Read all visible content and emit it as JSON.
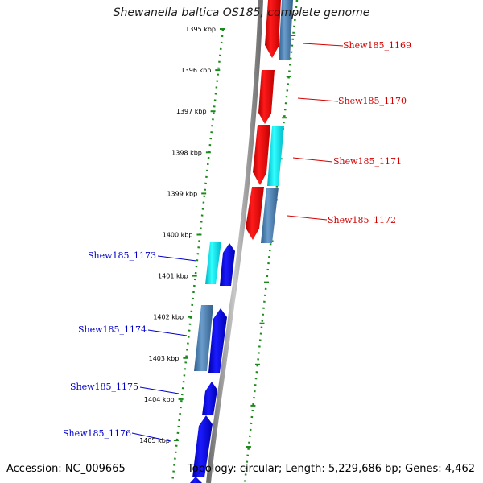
{
  "title": "Shewanella baltica OS185, complete genome",
  "accession": "Accession: NC_009665",
  "summary": "Topology: circular; Length: 5,229,686 bp; Genes: 4,462",
  "colors": {
    "forward_label": "#d40000",
    "reverse_label": "#0000c8",
    "red_gene": "#ff0000",
    "steel_gene": "#4a82b8",
    "cyan_gene": "#00e6f0",
    "blue_gene": "#0000ee",
    "tick": "#1a8a1a",
    "backbone": "#8c8c8c"
  },
  "scale_ticks": [
    {
      "label": "1395 kbp"
    },
    {
      "label": "1396 kbp"
    },
    {
      "label": "1397 kbp"
    },
    {
      "label": "1398 kbp"
    },
    {
      "label": "1399 kbp"
    },
    {
      "label": "1400 kbp"
    },
    {
      "label": "1401 kbp"
    },
    {
      "label": "1402 kbp"
    },
    {
      "label": "1403 kbp"
    },
    {
      "label": "1404 kbp"
    },
    {
      "label": "1405 kbp"
    }
  ],
  "gene_labels": [
    {
      "name": "Shew185_1169",
      "strand": "forward"
    },
    {
      "name": "Shew185_1170",
      "strand": "forward"
    },
    {
      "name": "Shew185_1171",
      "strand": "forward"
    },
    {
      "name": "Shew185_1172",
      "strand": "forward"
    },
    {
      "name": "Shew185_1173",
      "strand": "reverse"
    },
    {
      "name": "Shew185_1174",
      "strand": "reverse"
    },
    {
      "name": "Shew185_1175",
      "strand": "reverse"
    },
    {
      "name": "Shew185_1176",
      "strand": "reverse"
    }
  ]
}
